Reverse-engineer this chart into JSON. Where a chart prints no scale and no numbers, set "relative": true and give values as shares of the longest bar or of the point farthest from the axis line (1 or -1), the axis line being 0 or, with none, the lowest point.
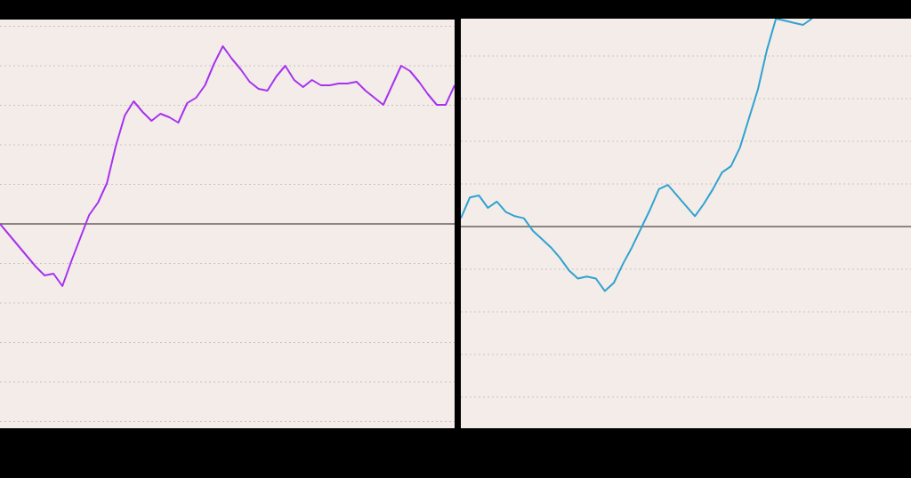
{
  "chart_data": [
    {
      "type": "line",
      "relative": true,
      "grid": "y",
      "categories": [
        null,
        null,
        null,
        null,
        null,
        null,
        null,
        null,
        null,
        null,
        null,
        null,
        null,
        null,
        null,
        null,
        null,
        null,
        null,
        null,
        null,
        null,
        null,
        null,
        null,
        null,
        null,
        null,
        null,
        null,
        null,
        null,
        null,
        null,
        null,
        null,
        null,
        null,
        null,
        null,
        null,
        null,
        null,
        null,
        null,
        null,
        null,
        null,
        null,
        null,
        null,
        null
      ],
      "series": [
        {
          "color": "#a633f0",
          "values": [
            0,
            -0.06,
            -0.12,
            -0.18,
            -0.24,
            -0.29,
            -0.28,
            -0.35,
            -0.21,
            -0.08,
            0.05,
            0.12,
            0.23,
            0.44,
            0.61,
            0.69,
            0.63,
            0.58,
            0.62,
            0.6,
            0.57,
            0.68,
            0.71,
            0.78,
            0.9,
            1,
            0.93,
            0.87,
            0.8,
            0.76,
            0.75,
            0.83,
            0.89,
            0.81,
            0.77,
            0.81,
            0.78,
            0.78,
            0.79,
            0.79,
            0.8,
            0.75,
            0.71,
            0.67,
            0.78,
            0.89,
            0.86,
            0.8,
            0.73,
            0.67,
            0.67,
            0.78
          ]
        }
      ]
    },
    {
      "type": "line",
      "relative": true,
      "grid": "y",
      "categories": [
        null,
        null,
        null,
        null,
        null,
        null,
        null,
        null,
        null,
        null,
        null,
        null,
        null,
        null,
        null,
        null,
        null,
        null,
        null,
        null,
        null,
        null,
        null,
        null,
        null,
        null,
        null,
        null,
        null,
        null,
        null,
        null,
        null,
        null,
        null,
        null,
        null,
        null,
        null,
        null,
        null,
        null,
        null,
        null,
        null,
        null,
        null,
        null,
        null,
        null,
        null
      ],
      "series": [
        {
          "color": "#2ea3d0",
          "values": [
            0.04,
            0.14,
            0.15,
            0.09,
            0.12,
            0.07,
            0.05,
            0.04,
            -0.02,
            -0.06,
            -0.1,
            -0.15,
            -0.21,
            -0.25,
            -0.24,
            -0.25,
            -0.31,
            -0.27,
            -0.18,
            -0.1,
            -0.01,
            0.08,
            0.18,
            0.2,
            0.15,
            0.1,
            0.05,
            0.11,
            0.18,
            0.26,
            0.29,
            0.38,
            0.52,
            0.66,
            0.85,
            1,
            0.99,
            0.98,
            0.97,
            1,
            null,
            null,
            null,
            null,
            null,
            null,
            null,
            null,
            null,
            null,
            null
          ]
        }
      ]
    }
  ]
}
